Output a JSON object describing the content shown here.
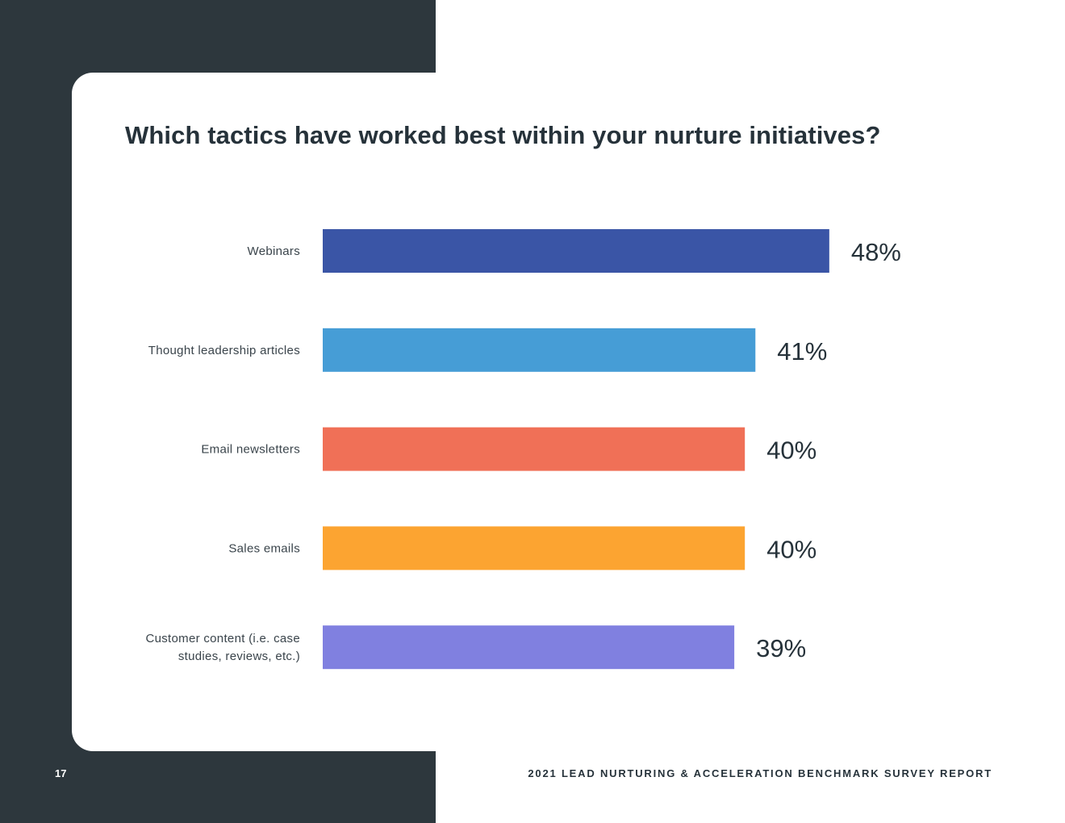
{
  "chart_data": {
    "type": "bar",
    "orientation": "horizontal",
    "title": "Which tactics have worked best within your nurture initiatives?",
    "categories": [
      "Webinars",
      "Thought leadership articles",
      "Email newsletters",
      "Sales emails",
      "Customer content (i.e. case studies, reviews, etc.)"
    ],
    "category_label_lines": [
      [
        "Webinars"
      ],
      [
        "Thought leadership articles"
      ],
      [
        "Email newsletters"
      ],
      [
        "Sales emails"
      ],
      [
        "Customer content (i.e. case",
        "studies, reviews, etc.)"
      ]
    ],
    "values": [
      48,
      41,
      40,
      40,
      39
    ],
    "value_labels": [
      "48%",
      "41%",
      "40%",
      "40%",
      "39%"
    ],
    "colors": [
      "#3a55a6",
      "#469dd6",
      "#f07057",
      "#fca431",
      "#8080e0"
    ],
    "unit": "%",
    "xlim": [
      0,
      100
    ],
    "grid": false,
    "legend": "none"
  },
  "page": {
    "number": "17",
    "report_title": "2021 LEAD NURTURING & ACCELERATION BENCHMARK SURVEY REPORT"
  },
  "colors": {
    "dark_panel": "#2d373d",
    "text_dark": "#26323a",
    "background": "#ffffff"
  }
}
